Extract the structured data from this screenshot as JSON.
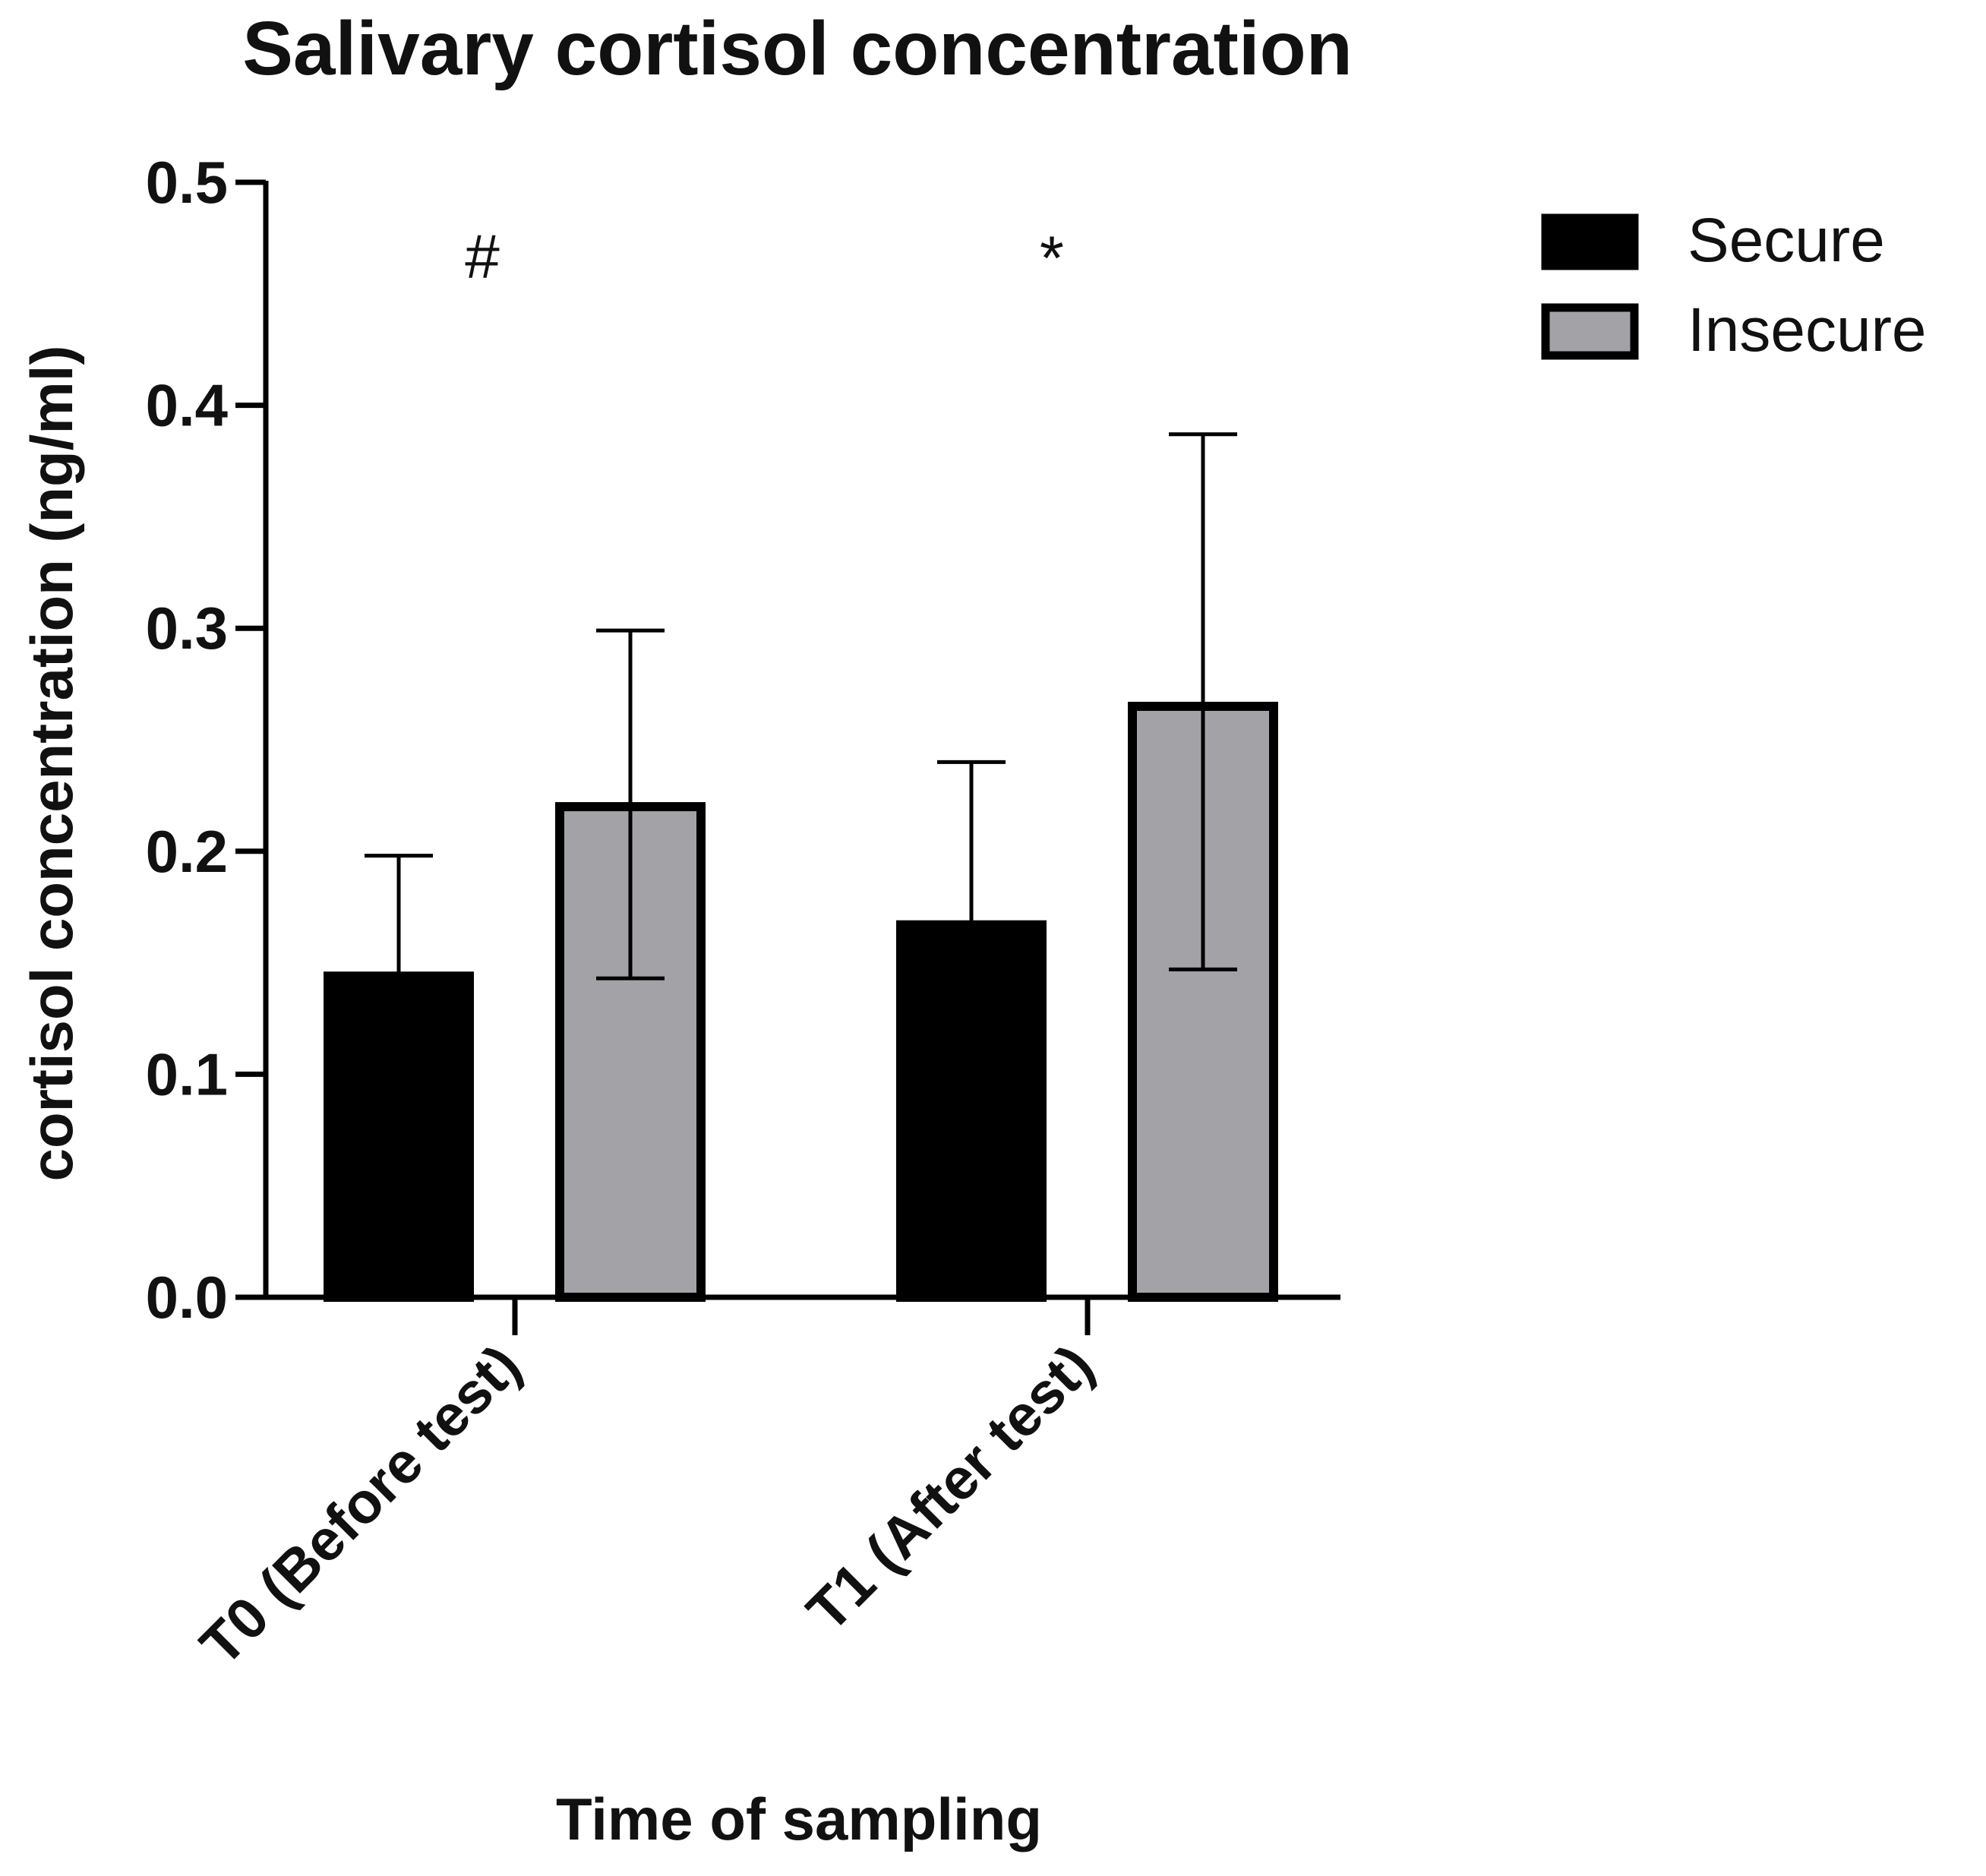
{
  "chart_data": {
    "type": "bar",
    "title": "Salivary cortisol concentration",
    "xlabel": "Time of sampling",
    "ylabel": "cortisol concentration (ng/ml)",
    "ylim": [
      0,
      0.5
    ],
    "yticks": [
      "0.0",
      "0.1",
      "0.2",
      "0.3",
      "0.4",
      "0.5"
    ],
    "categories": [
      "T0 (Before test)",
      "T1 (After test)"
    ],
    "series": [
      {
        "name": "Secure",
        "values": [
          0.144,
          0.167
        ],
        "error_upper": [
          0.198,
          0.24
        ],
        "color": "#000000"
      },
      {
        "name": "Insecure",
        "values": [
          0.22,
          0.265
        ],
        "error_lower": [
          0.143,
          0.147
        ],
        "error_upper": [
          0.299,
          0.387
        ],
        "color": "#a3a3a7"
      }
    ],
    "annotations": [
      "#",
      "*"
    ],
    "legend_position": "top-right",
    "grid": false
  }
}
